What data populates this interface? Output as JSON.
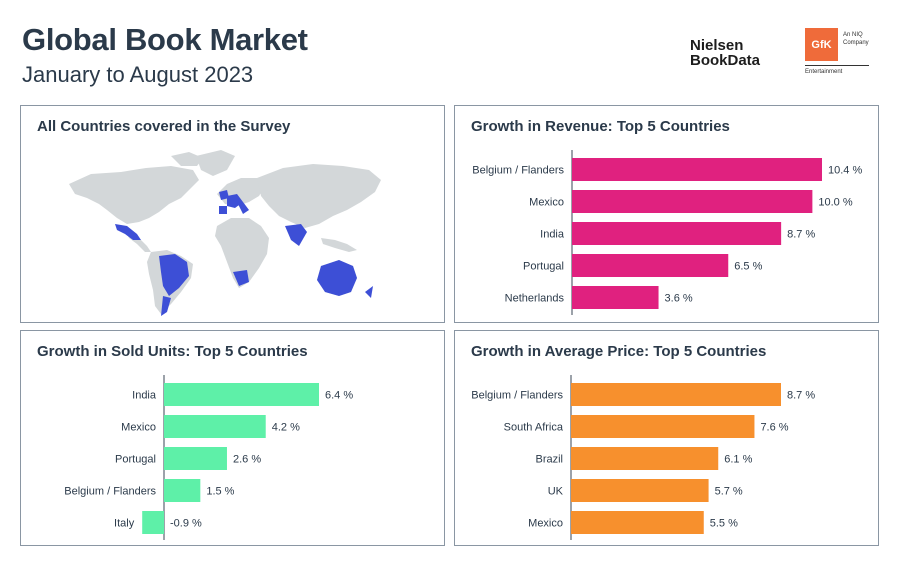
{
  "header": {
    "title": "Global Book Market",
    "subtitle": "January to August 2023",
    "logo_nielsen_line1": "Nielsen",
    "logo_nielsen_line2": "BookData",
    "logo_gfk": "GfK",
    "logo_gfk_sub1": "An NIQ",
    "logo_gfk_sub2": "Company",
    "logo_gfk_ent": "Entertainment"
  },
  "map_panel": {
    "title": "All Countries covered in the Survey",
    "highlight_color": "#3d4fd6",
    "base_color": "#d3d7d9"
  },
  "chart_data": [
    {
      "type": "bar",
      "orientation": "horizontal",
      "title": "Growth in Revenue: Top 5 Countries",
      "categories": [
        "Belgium / Flanders",
        "Mexico",
        "India",
        "Portugal",
        "Netherlands"
      ],
      "values": [
        10.4,
        10.0,
        8.7,
        6.5,
        3.6
      ],
      "labels": [
        "10.4 %",
        "10.0 %",
        "8.7 %",
        "6.5 %",
        "3.6 %"
      ],
      "color": "#e0217f",
      "xlim": [
        0,
        10.4
      ]
    },
    {
      "type": "bar",
      "orientation": "horizontal",
      "title": "Growth in Sold Units: Top 5 Countries",
      "categories": [
        "India",
        "Mexico",
        "Portugal",
        "Belgium / Flanders",
        "Italy"
      ],
      "values": [
        6.4,
        4.2,
        2.6,
        1.5,
        -0.9
      ],
      "labels": [
        "6.4 %",
        "4.2 %",
        "2.6 %",
        "1.5 %",
        "-0.9 %"
      ],
      "color": "#5ef0a8",
      "xlim": [
        -0.9,
        6.4
      ]
    },
    {
      "type": "bar",
      "orientation": "horizontal",
      "title": "Growth in Average Price: Top 5 Countries",
      "categories": [
        "Belgium / Flanders",
        "South Africa",
        "Brazil",
        "UK",
        "Mexico"
      ],
      "values": [
        8.7,
        7.6,
        6.1,
        5.7,
        5.5
      ],
      "labels": [
        "8.7 %",
        "7.6 %",
        "6.1 %",
        "5.7 %",
        "5.5 %"
      ],
      "color": "#f7902d",
      "xlim": [
        0,
        8.7
      ]
    }
  ]
}
